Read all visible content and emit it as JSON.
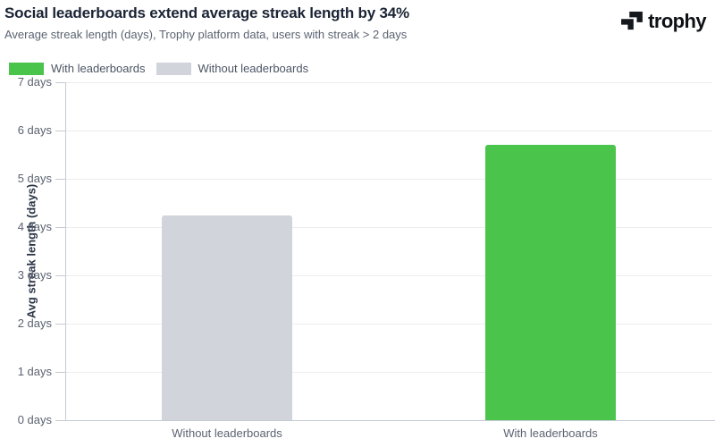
{
  "header": {
    "title": "Social leaderboards extend average streak length by 34%",
    "subtitle": "Average streak length (days), Trophy platform data, users with streak > 2 days",
    "logo_text": "trophy"
  },
  "legend": {
    "items": [
      {
        "label": "With leaderboards",
        "color": "#4bc44b"
      },
      {
        "label": "Without leaderboards",
        "color": "#d1d4db"
      }
    ]
  },
  "chart_data": {
    "type": "bar",
    "title": "Social leaderboards extend average streak length by 34%",
    "subtitle": "Average streak length (days), Trophy platform data, users with streak > 2 days",
    "categories": [
      "Without leaderboards",
      "With leaderboards"
    ],
    "values": [
      4.25,
      5.7
    ],
    "bar_colors": [
      "#d1d4db",
      "#4bc44b"
    ],
    "xlabel": "",
    "ylabel": "Avg streak length (days)",
    "ylim": [
      0,
      7
    ],
    "yticks": [
      0,
      1,
      2,
      3,
      4,
      5,
      6,
      7
    ],
    "ytick_labels": [
      "0 days",
      "1 days",
      "2 days",
      "3 days",
      "4 days",
      "5 days",
      "6 days",
      "7 days"
    ],
    "grid": true,
    "legend_position": "top-left"
  }
}
